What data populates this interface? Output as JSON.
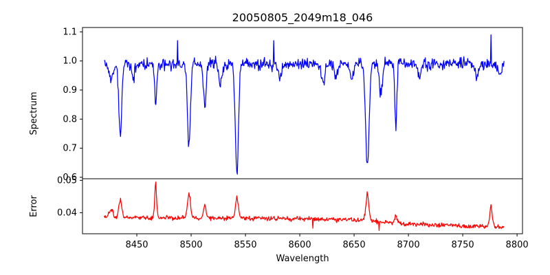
{
  "chart_data": {
    "type": "line",
    "title": "20050805_2049m18_046",
    "xlabel": "Wavelength",
    "xlim": [
      8400,
      8805
    ],
    "xticks": [
      8450,
      8500,
      8550,
      8600,
      8650,
      8700,
      8750,
      8800
    ],
    "x_range": [
      8420,
      8788
    ],
    "grid": false,
    "panels": [
      {
        "name": "spectrum",
        "ylabel": "Spectrum",
        "ylim": [
          0.595,
          1.115
        ],
        "yticks": [
          0.6,
          0.7,
          0.8,
          0.9,
          1.0,
          1.1
        ],
        "ytick_labels": [
          "0.6",
          "0.7",
          "0.8",
          "0.9",
          "1.0",
          "1.1"
        ],
        "color": "#0000ff",
        "baseline": 0.99,
        "noise": 0.035,
        "features": [
          {
            "center": 8426.5,
            "depth": 0.05,
            "width": 2.0
          },
          {
            "center": 8434.8,
            "depth": 0.26,
            "width": 1.3
          },
          {
            "center": 8446.9,
            "depth": 0.05,
            "width": 1.5
          },
          {
            "center": 8467.3,
            "depth": 0.14,
            "width": 1.0
          },
          {
            "center": 8498.0,
            "depth": 0.28,
            "width": 1.4
          },
          {
            "center": 8512.5,
            "depth": 0.15,
            "width": 1.2
          },
          {
            "center": 8526.8,
            "depth": 0.07,
            "width": 1.5
          },
          {
            "center": 8542.1,
            "depth": 0.38,
            "width": 1.4
          },
          {
            "center": 8582.0,
            "depth": 0.05,
            "width": 1.5
          },
          {
            "center": 8621.3,
            "depth": 0.07,
            "width": 1.4
          },
          {
            "center": 8633.0,
            "depth": 0.05,
            "width": 1.5
          },
          {
            "center": 8648.0,
            "depth": 0.05,
            "width": 1.5
          },
          {
            "center": 8662.2,
            "depth": 0.35,
            "width": 1.6
          },
          {
            "center": 8674.7,
            "depth": 0.1,
            "width": 1.5
          },
          {
            "center": 8688.4,
            "depth": 0.22,
            "width": 0.9
          },
          {
            "center": 8710.0,
            "depth": 0.05,
            "width": 1.5
          },
          {
            "center": 8763.0,
            "depth": 0.05,
            "width": 1.5
          },
          {
            "center": 8784.0,
            "depth": 0.04,
            "width": 1.5
          }
        ],
        "points": [
          [
            8420,
            1.0
          ],
          [
            8434.8,
            0.74
          ],
          [
            8467.3,
            0.85
          ],
          [
            8487.5,
            1.07
          ],
          [
            8498.0,
            0.72
          ],
          [
            8512.5,
            0.84
          ],
          [
            8542.1,
            0.62
          ],
          [
            8576.0,
            1.07
          ],
          [
            8662.2,
            0.65
          ],
          [
            8688.4,
            0.76
          ],
          [
            8776.0,
            1.09
          ],
          [
            8788,
            1.0
          ]
        ]
      },
      {
        "name": "error",
        "ylabel": "Error",
        "ylim": [
          0.0335,
          0.0505
        ],
        "yticks": [
          0.04,
          0.05
        ],
        "ytick_labels": [
          "0.04",
          "0.05"
        ],
        "color": "#ff0000",
        "noise": 0.0012,
        "trend": [
          [
            8420,
            0.0385
          ],
          [
            8600,
            0.0382
          ],
          [
            8650,
            0.0378
          ],
          [
            8700,
            0.0365
          ],
          [
            8788,
            0.0355
          ]
        ],
        "features": [
          {
            "center": 8426.5,
            "height": 0.003,
            "width": 1.5
          },
          {
            "center": 8434.8,
            "height": 0.0055,
            "width": 1.3
          },
          {
            "center": 8467.3,
            "height": 0.0105,
            "width": 0.9
          },
          {
            "center": 8498.0,
            "height": 0.0075,
            "width": 1.4
          },
          {
            "center": 8512.5,
            "height": 0.004,
            "width": 1.2
          },
          {
            "center": 8542.1,
            "height": 0.0065,
            "width": 1.3
          },
          {
            "center": 8662.2,
            "height": 0.008,
            "width": 1.4
          },
          {
            "center": 8688.4,
            "height": 0.0025,
            "width": 1.0
          },
          {
            "center": 8776.0,
            "height": 0.006,
            "width": 1.2
          }
        ],
        "points": [
          [
            8420,
            0.039
          ],
          [
            8434.8,
            0.0445
          ],
          [
            8467.3,
            0.0495
          ],
          [
            8498.0,
            0.0462
          ],
          [
            8542.1,
            0.0452
          ],
          [
            8612.0,
            0.0352
          ],
          [
            8662.2,
            0.0465
          ],
          [
            8673.0,
            0.0345
          ],
          [
            8776.0,
            0.0425
          ],
          [
            8788,
            0.0356
          ]
        ]
      }
    ]
  }
}
